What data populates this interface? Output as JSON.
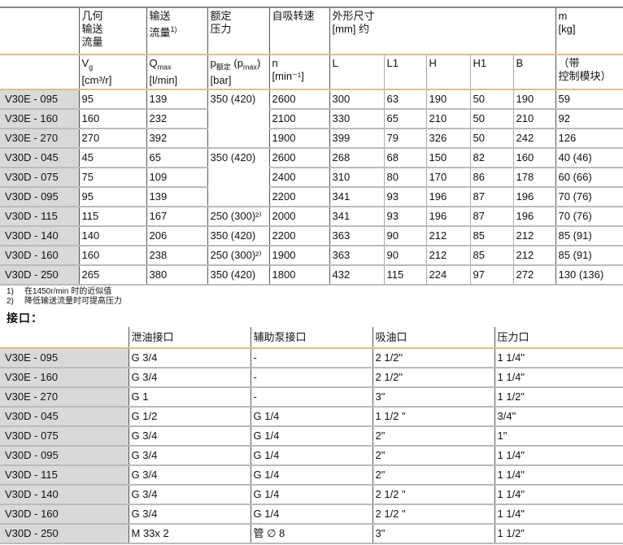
{
  "table1": {
    "header1": [
      "",
      "几何输送流量",
      "输送流量",
      "额定压力",
      "自吸转速",
      "外形尺寸",
      "m"
    ],
    "header1_lines": {
      "geo": [
        "几何",
        "输送",
        "流量"
      ],
      "flow": [
        "输送",
        "流量"
      ],
      "flow_sup": "1)",
      "press": [
        "额定",
        "压力"
      ],
      "speed": "自吸转速",
      "dims": [
        "外形尺寸",
        "[mm] 约"
      ],
      "mass": [
        "m",
        "[kg]"
      ]
    },
    "header2": {
      "vg": "V",
      "vg_sub": "g",
      "vg_unit": "[cm³/r]",
      "q": "Q",
      "q_sub": "max",
      "q_unit": "[l/min]",
      "p": "p",
      "p_sub": "额定",
      "p_mid": " (p",
      "p_sub2": "max",
      "p_end": ")",
      "p_unit": "[bar]",
      "n": "n",
      "n_unit": "[min⁻¹]",
      "L": "L",
      "L1": "L1",
      "H": "H",
      "H1": "H1",
      "B": "B",
      "m_note": [
        "（带",
        "控制模块）"
      ]
    },
    "rows": [
      [
        "V30E - 095",
        "95",
        "139",
        "350 (420)",
        "2600",
        "300",
        "63",
        "190",
        "50",
        "190",
        "59"
      ],
      [
        "V30E - 160",
        "160",
        "232",
        "",
        "2100",
        "330",
        "65",
        "210",
        "50",
        "210",
        "92"
      ],
      [
        "V30E - 270",
        "270",
        "392",
        "",
        "1900",
        "399",
        "79",
        "326",
        "50",
        "242",
        "126"
      ],
      [
        "V30D - 045",
        "45",
        "65",
        "350 (420)",
        "2600",
        "268",
        "68",
        "150",
        "82",
        "160",
        "40 (46)"
      ],
      [
        "V30D - 075",
        "75",
        "109",
        "",
        "2400",
        "310",
        "80",
        "170",
        "86",
        "178",
        "60 (66)"
      ],
      [
        "V30D - 095",
        "95",
        "139",
        "",
        "2200",
        "341",
        "93",
        "196",
        "87",
        "196",
        "70 (76)"
      ],
      [
        "V30D - 115",
        "115",
        "167",
        "250 (300)²⁾",
        "2000",
        "341",
        "93",
        "196",
        "87",
        "196",
        "70 (76)"
      ],
      [
        "V30D - 140",
        "140",
        "206",
        "350 (420)",
        "2200",
        "363",
        "90",
        "212",
        "85",
        "212",
        "85 (91)"
      ],
      [
        "V30D - 160",
        "160",
        "238",
        "250 (300)²⁾",
        "1900",
        "363",
        "90",
        "212",
        "85",
        "212",
        "85 (91)"
      ],
      [
        "V30D - 250",
        "265",
        "380",
        "350 (420)",
        "1800",
        "432",
        "115",
        "224",
        "97",
        "272",
        "130 (136)"
      ]
    ]
  },
  "notes": [
    {
      "num": "1)",
      "text": "在1450r/min 时的近似值"
    },
    {
      "num": "2)",
      "text": "降低输送流量时可提高压力"
    }
  ],
  "connections_title": "接口：",
  "table2": {
    "headers": [
      "",
      "泄油接口",
      "辅助泵接口",
      "吸油口",
      "压力口"
    ],
    "rows": [
      [
        "V30E - 095",
        "G 3/4",
        "-",
        "2 1/2\"",
        "1 1/4\""
      ],
      [
        "V30E - 160",
        "G 3/4",
        "-",
        "2 1/2\"",
        "1 1/4\""
      ],
      [
        "V30E - 270",
        "G 1",
        "-",
        "3\"",
        "1 1/2\""
      ],
      [
        "V30D - 045",
        "G 1/2",
        "G 1/4",
        "1 1/2 \"",
        "3/4\""
      ],
      [
        "V30D - 075",
        "G 3/4",
        "G 1/4",
        "2\"",
        "1\""
      ],
      [
        "V30D - 095",
        "G 3/4",
        "G 1/4",
        "2\"",
        "1 1/4\""
      ],
      [
        "V30D - 115",
        "G 3/4",
        "G 1/4",
        "2\"",
        "1 1/4\""
      ],
      [
        "V30D - 140",
        "G 3/4",
        "G 1/4",
        "2 1/2 \"",
        "1 1/4\""
      ],
      [
        "V30D - 160",
        "G 3/4",
        "G 1/4",
        "2 1/2 \"",
        "1 1/4\""
      ],
      [
        "V30D - 250",
        "M 33x 2",
        "管 ∅ 8",
        "3\"",
        "1 1/2\""
      ]
    ]
  }
}
